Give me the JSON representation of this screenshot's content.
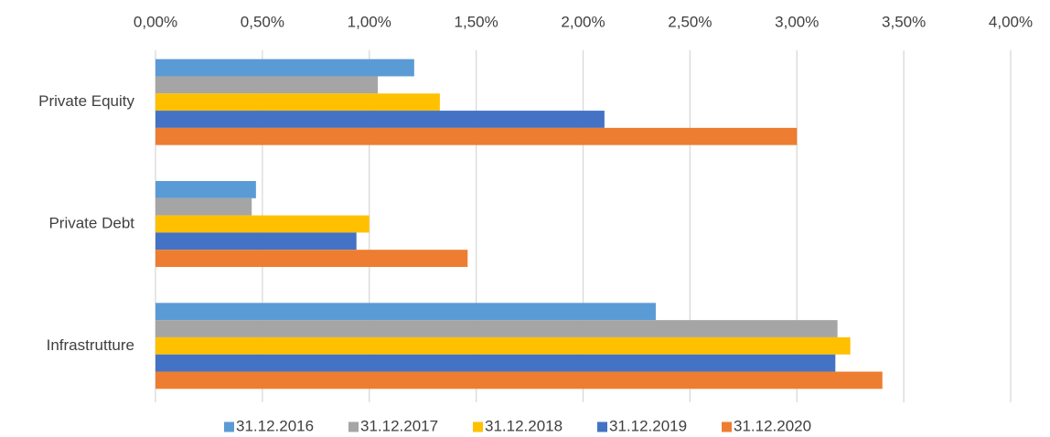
{
  "chart_data": {
    "type": "hbar",
    "categories": [
      "Private Equity",
      "Private Debt",
      "Infrastrutture"
    ],
    "series": [
      {
        "name": "31.12.2016",
        "color": "#5b9bd5",
        "values": [
          1.21,
          0.47,
          2.34
        ]
      },
      {
        "name": "31.12.2017",
        "color": "#a5a5a5",
        "values": [
          1.04,
          0.45,
          3.19
        ]
      },
      {
        "name": "31.12.2018",
        "color": "#ffc000",
        "values": [
          1.33,
          1.0,
          3.25
        ]
      },
      {
        "name": "31.12.2019",
        "color": "#4472c4",
        "values": [
          2.1,
          0.94,
          3.18
        ]
      },
      {
        "name": "31.12.2020",
        "color": "#ed7d31",
        "values": [
          3.0,
          1.46,
          3.4
        ]
      }
    ],
    "xlim": [
      0,
      4
    ],
    "xticks": [
      {
        "value": 0,
        "label": "0,00%"
      },
      {
        "value": 0.5,
        "label": "0,50%"
      },
      {
        "value": 1,
        "label": "1,00%"
      },
      {
        "value": 1.5,
        "label": "1,50%"
      },
      {
        "value": 2,
        "label": "2,00%"
      },
      {
        "value": 2.5,
        "label": "2,50%"
      },
      {
        "value": 3,
        "label": "3,00%"
      },
      {
        "value": 3.5,
        "label": "3,50%"
      },
      {
        "value": 4,
        "label": "4,00%"
      }
    ],
    "grid": true,
    "legend": "bottom"
  }
}
